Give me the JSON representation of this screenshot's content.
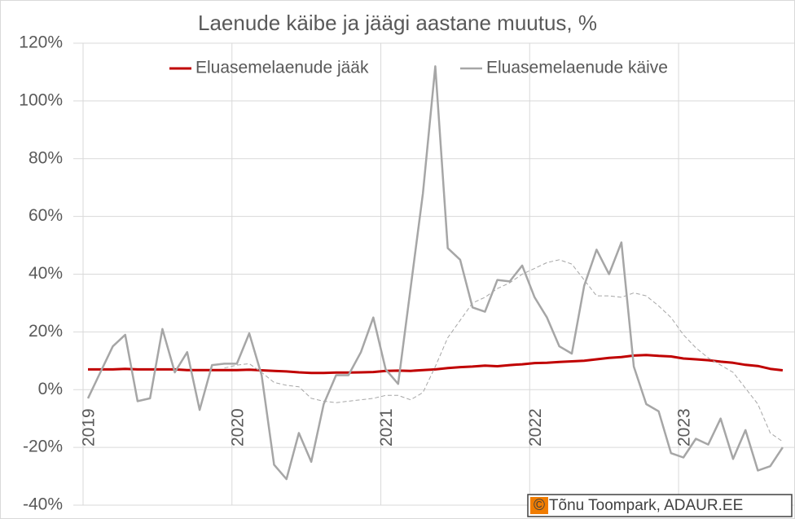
{
  "chart_data": {
    "type": "line",
    "title": "Laenude käibe ja jäägi aastane muutus, %",
    "annotation": "© Tõnu Toompark, ADAUR.EE",
    "categories": [
      "2019",
      null,
      null,
      null,
      null,
      null,
      null,
      null,
      null,
      null,
      null,
      null,
      "2020",
      null,
      null,
      null,
      null,
      null,
      null,
      null,
      null,
      null,
      null,
      null,
      "2021",
      null,
      null,
      null,
      null,
      null,
      null,
      null,
      null,
      null,
      null,
      null,
      "2022",
      null,
      null,
      null,
      null,
      null,
      null,
      null,
      null,
      null,
      null,
      null,
      "2023",
      null,
      null,
      null,
      null,
      null,
      null,
      null,
      null
    ],
    "series": [
      {
        "name": "Eluasemelaenude jääk",
        "color": "#c00000",
        "width": 3,
        "values": [
          7,
          7,
          7,
          7.2,
          7,
          7,
          7,
          7,
          6.8,
          6.8,
          6.8,
          6.8,
          6.8,
          6.9,
          6.7,
          6.5,
          6.3,
          6,
          5.8,
          5.8,
          5.9,
          5.9,
          6,
          6.1,
          6.5,
          6.6,
          6.5,
          6.8,
          7,
          7.5,
          7.8,
          8,
          8.3,
          8.1,
          8.5,
          8.8,
          9.2,
          9.3,
          9.6,
          9.8,
          10,
          10.5,
          11,
          11.3,
          11.8,
          12,
          11.7,
          11.5,
          10.8,
          10.5,
          10.2,
          9.7,
          9.3,
          8.6,
          8.2,
          7.2,
          6.7
        ]
      },
      {
        "name": "Eluasemelaenude käive",
        "color": "#a6a6a6",
        "width": 2.5,
        "values": [
          -3,
          6,
          15,
          19,
          -4,
          -3,
          21,
          6,
          13,
          -7,
          8.5,
          9,
          9,
          19.5,
          5,
          -26,
          -31,
          -15,
          -25,
          -5,
          5,
          5,
          13,
          25,
          7,
          2,
          35,
          68,
          112,
          49,
          45,
          28.5,
          27,
          38,
          37.5,
          43,
          32,
          25,
          15,
          12.5,
          36,
          48.5,
          40,
          51,
          8,
          -5,
          -7.5,
          -22,
          -23.5,
          -17,
          -19,
          -10,
          -24,
          -14,
          -28,
          -26.5,
          -20
        ]
      },
      {
        "color": "#a6a6a6",
        "width": 1,
        "dashed": true,
        "values": [
          null,
          null,
          null,
          null,
          null,
          null,
          null,
          null,
          null,
          null,
          null,
          7.5,
          8.5,
          9,
          6,
          2.5,
          1.5,
          1,
          -3,
          -4,
          -4.5,
          -4,
          -3.5,
          -3,
          -2,
          -2,
          -3.5,
          -1,
          8,
          18,
          24,
          30,
          32,
          35,
          37,
          40,
          42,
          44,
          45,
          43.5,
          38,
          32.5,
          32.5,
          32,
          33.5,
          32.5,
          29,
          25,
          19,
          14.5,
          11,
          8.5,
          6,
          0.5,
          -5,
          -15,
          -18
        ]
      }
    ],
    "ylim": [
      -40,
      120
    ],
    "yticks": [
      {
        "value": -40,
        "label": "-40%"
      },
      {
        "value": -20,
        "label": "-20%"
      },
      {
        "value": 0,
        "label": "0%"
      },
      {
        "value": 20,
        "label": "20%"
      },
      {
        "value": 40,
        "label": "40%"
      },
      {
        "value": 60,
        "label": "60%"
      },
      {
        "value": 80,
        "label": "80%"
      },
      {
        "value": 100,
        "label": "100%"
      },
      {
        "value": 120,
        "label": "120%"
      }
    ],
    "grid": true,
    "legend": "top"
  }
}
